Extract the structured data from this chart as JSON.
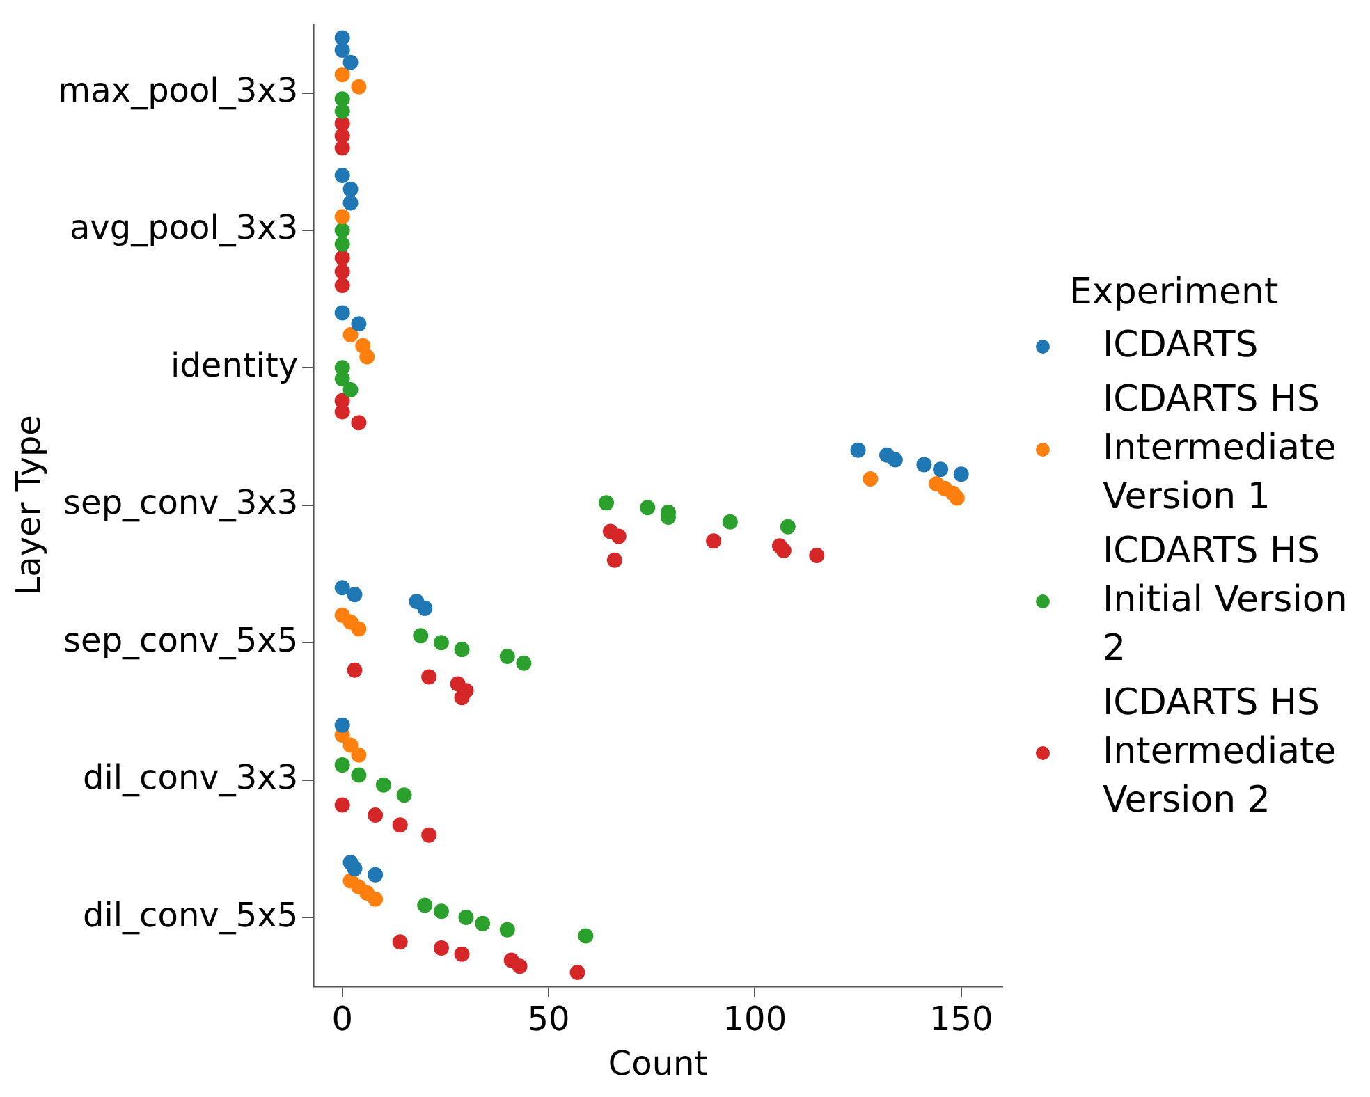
{
  "chart_data": {
    "type": "scatter",
    "orientation": "horizontal",
    "xlabel": "Count",
    "ylabel": "Layer Type",
    "legend_title": "Experiment",
    "legend": "right",
    "grid": false,
    "marker": "circle",
    "categories": [
      "max_pool_3x3",
      "avg_pool_3x3",
      "identity",
      "sep_conv_3x3",
      "sep_conv_5x5",
      "dil_conv_3x3",
      "dil_conv_5x5"
    ],
    "xlim": [
      -7,
      160
    ],
    "xticks": [
      0,
      50,
      100,
      150
    ],
    "series": [
      {
        "name": "ICDARTS",
        "color": "#1f77b4",
        "x": [
          "max_pool_3x3",
          "max_pool_3x3",
          "max_pool_3x3",
          "avg_pool_3x3",
          "avg_pool_3x3",
          "avg_pool_3x3",
          "identity",
          "identity",
          "sep_conv_3x3",
          "sep_conv_3x3",
          "sep_conv_3x3",
          "sep_conv_3x3",
          "sep_conv_3x3",
          "sep_conv_3x3",
          "sep_conv_5x5",
          "sep_conv_5x5",
          "sep_conv_5x5",
          "sep_conv_5x5",
          "dil_conv_3x3",
          "dil_conv_5x5",
          "dil_conv_5x5",
          "dil_conv_5x5"
        ],
        "values": [
          0,
          0,
          2,
          0,
          2,
          2,
          0,
          4,
          125,
          132,
          134,
          141,
          145,
          150,
          0,
          3,
          18,
          20,
          0,
          2,
          3,
          8
        ]
      },
      {
        "name": "ICDARTS HS Intermediate Version 1",
        "color": "#ff7f0e",
        "x": [
          "max_pool_3x3",
          "max_pool_3x3",
          "avg_pool_3x3",
          "identity",
          "identity",
          "identity",
          "sep_conv_3x3",
          "sep_conv_3x3",
          "sep_conv_3x3",
          "sep_conv_3x3",
          "sep_conv_3x3",
          "sep_conv_5x5",
          "sep_conv_5x5",
          "sep_conv_5x5",
          "dil_conv_3x3",
          "dil_conv_3x3",
          "dil_conv_3x3",
          "dil_conv_5x5",
          "dil_conv_5x5",
          "dil_conv_5x5",
          "dil_conv_5x5"
        ],
        "values": [
          0,
          4,
          0,
          2,
          5,
          6,
          128,
          144,
          146,
          148,
          149,
          0,
          2,
          4,
          0,
          2,
          4,
          2,
          4,
          6,
          8
        ]
      },
      {
        "name": "ICDARTS HS Initial Version 2",
        "color": "#2ca02c",
        "x": [
          "max_pool_3x3",
          "max_pool_3x3",
          "avg_pool_3x3",
          "avg_pool_3x3",
          "identity",
          "identity",
          "identity",
          "sep_conv_3x3",
          "sep_conv_3x3",
          "sep_conv_3x3",
          "sep_conv_3x3",
          "sep_conv_3x3",
          "sep_conv_3x3",
          "sep_conv_5x5",
          "sep_conv_5x5",
          "sep_conv_5x5",
          "sep_conv_5x5",
          "sep_conv_5x5",
          "dil_conv_3x3",
          "dil_conv_3x3",
          "dil_conv_3x3",
          "dil_conv_3x3",
          "dil_conv_5x5",
          "dil_conv_5x5",
          "dil_conv_5x5",
          "dil_conv_5x5",
          "dil_conv_5x5",
          "dil_conv_5x5"
        ],
        "values": [
          0,
          0,
          0,
          0,
          0,
          0,
          2,
          64,
          74,
          79,
          79,
          94,
          108,
          19,
          24,
          29,
          40,
          44,
          0,
          4,
          10,
          15,
          20,
          24,
          30,
          34,
          40,
          59
        ]
      },
      {
        "name": "ICDARTS HS Intermediate Version 2",
        "color": "#d62728",
        "x": [
          "max_pool_3x3",
          "max_pool_3x3",
          "max_pool_3x3",
          "avg_pool_3x3",
          "avg_pool_3x3",
          "avg_pool_3x3",
          "identity",
          "identity",
          "identity",
          "sep_conv_3x3",
          "sep_conv_3x3",
          "sep_conv_3x3",
          "sep_conv_3x3",
          "sep_conv_3x3",
          "sep_conv_3x3",
          "sep_conv_3x3",
          "sep_conv_5x5",
          "sep_conv_5x5",
          "sep_conv_5x5",
          "sep_conv_5x5",
          "sep_conv_5x5",
          "dil_conv_3x3",
          "dil_conv_3x3",
          "dil_conv_3x3",
          "dil_conv_3x3",
          "dil_conv_5x5",
          "dil_conv_5x5",
          "dil_conv_5x5",
          "dil_conv_5x5",
          "dil_conv_5x5",
          "dil_conv_5x5"
        ],
        "values": [
          0,
          0,
          0,
          0,
          0,
          0,
          0,
          0,
          4,
          65,
          67,
          90,
          106,
          107,
          115,
          66,
          3,
          21,
          28,
          30,
          29,
          0,
          8,
          14,
          21,
          14,
          24,
          29,
          41,
          43,
          57
        ]
      }
    ]
  }
}
